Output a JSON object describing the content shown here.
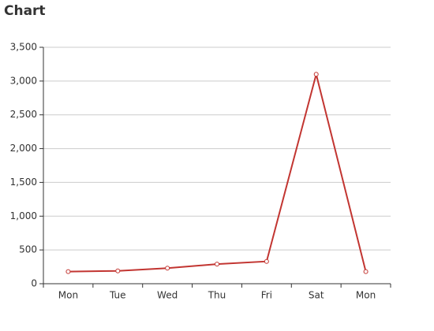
{
  "chart_data": {
    "type": "line",
    "title": "Chart",
    "categories": [
      "Mon",
      "Tue",
      "Wed",
      "Thu",
      "Fri",
      "Sat",
      "Mon"
    ],
    "values": [
      180,
      190,
      230,
      290,
      330,
      3100,
      180
    ],
    "color": "#c23531",
    "ylim": [
      0,
      3500
    ],
    "yticks": [
      0,
      500,
      {
        "value": 1000,
        "label": "1,000"
      },
      {
        "value": 1500,
        "label": "1,500"
      },
      {
        "value": 2000,
        "label": "2,000"
      },
      {
        "value": 2500,
        "label": "2,500"
      },
      {
        "value": 3000,
        "label": "3,000"
      },
      {
        "value": 3500,
        "label": "3,500"
      }
    ],
    "grid": true
  }
}
